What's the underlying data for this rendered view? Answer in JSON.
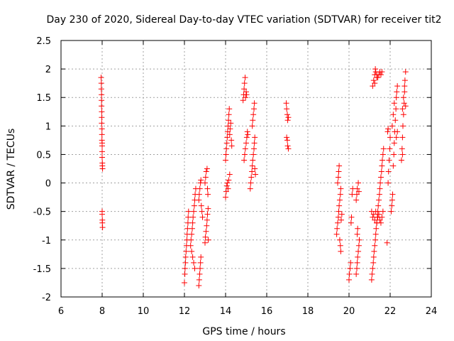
{
  "chart_data": {
    "type": "scatter",
    "title": "Day 230 of 2020, Sidereal Day-to-day VTEC variation (SDTVAR) for receiver tit2",
    "xlabel": "GPS time / hours",
    "ylabel": "SDTVAR / TECUs",
    "xlim": [
      6,
      24
    ],
    "ylim": [
      -2,
      2.5
    ],
    "xticks": [
      6,
      8,
      10,
      12,
      14,
      16,
      18,
      20,
      22,
      24
    ],
    "yticks": [
      -2,
      -1.5,
      -1,
      -0.5,
      0,
      0.5,
      1,
      1.5,
      2,
      2.5
    ],
    "xtick_labels": [
      "6",
      "8",
      "10",
      "12",
      "14",
      "16",
      "18",
      "20",
      "22",
      "24"
    ],
    "ytick_labels": [
      "-2",
      "-1.5",
      "-1",
      "-0.5",
      "0",
      "0.5",
      "1",
      "1.5",
      "2",
      "2.5"
    ],
    "grid": true,
    "marker": "+",
    "marker_color": "#ff0000",
    "series": [
      {
        "name": "tit2",
        "points": [
          [
            7.95,
            1.85
          ],
          [
            7.96,
            1.75
          ],
          [
            7.96,
            1.65
          ],
          [
            7.97,
            1.55
          ],
          [
            7.97,
            1.45
          ],
          [
            7.97,
            1.35
          ],
          [
            7.98,
            1.25
          ],
          [
            7.98,
            1.15
          ],
          [
            7.98,
            1.05
          ],
          [
            7.99,
            0.95
          ],
          [
            7.99,
            0.85
          ],
          [
            7.99,
            0.75
          ],
          [
            8.0,
            0.7
          ],
          [
            8.0,
            0.65
          ],
          [
            8.0,
            0.55
          ],
          [
            8.0,
            0.45
          ],
          [
            8.01,
            0.35
          ],
          [
            8.01,
            0.3
          ],
          [
            8.02,
            0.25
          ],
          [
            8.0,
            -0.5
          ],
          [
            8.0,
            -0.55
          ],
          [
            8.01,
            -0.65
          ],
          [
            8.01,
            -0.7
          ],
          [
            8.02,
            -0.78
          ],
          [
            12.0,
            -1.75
          ],
          [
            12.02,
            -1.6
          ],
          [
            12.03,
            -1.5
          ],
          [
            12.05,
            -1.4
          ],
          [
            12.06,
            -1.3
          ],
          [
            12.08,
            -1.2
          ],
          [
            12.1,
            -1.1
          ],
          [
            12.12,
            -1.0
          ],
          [
            12.13,
            -0.9
          ],
          [
            12.15,
            -0.8
          ],
          [
            12.17,
            -0.7
          ],
          [
            12.18,
            -0.6
          ],
          [
            12.2,
            -0.5
          ],
          [
            12.3,
            -1.1
          ],
          [
            12.32,
            -1.0
          ],
          [
            12.35,
            -0.9
          ],
          [
            12.38,
            -0.8
          ],
          [
            12.4,
            -0.7
          ],
          [
            12.42,
            -0.6
          ],
          [
            12.45,
            -0.5
          ],
          [
            12.48,
            -0.4
          ],
          [
            12.5,
            -0.3
          ],
          [
            12.52,
            -0.2
          ],
          [
            12.55,
            -0.1
          ],
          [
            12.35,
            -1.2
          ],
          [
            12.4,
            -1.3
          ],
          [
            12.45,
            -1.4
          ],
          [
            12.5,
            -1.5
          ],
          [
            12.7,
            -1.8
          ],
          [
            12.72,
            -1.7
          ],
          [
            12.74,
            -1.6
          ],
          [
            12.76,
            -1.5
          ],
          [
            12.78,
            -1.4
          ],
          [
            12.8,
            -1.3
          ],
          [
            12.7,
            -0.3
          ],
          [
            12.72,
            -0.2
          ],
          [
            12.75,
            -0.1
          ],
          [
            12.78,
            0.0
          ],
          [
            12.8,
            0.05
          ],
          [
            12.82,
            -0.4
          ],
          [
            12.85,
            -0.5
          ],
          [
            12.88,
            -0.6
          ],
          [
            13.0,
            -1.05
          ],
          [
            13.02,
            -0.95
          ],
          [
            13.05,
            -0.85
          ],
          [
            13.08,
            -0.75
          ],
          [
            13.1,
            -0.65
          ],
          [
            13.12,
            -0.55
          ],
          [
            13.15,
            -0.45
          ],
          [
            13.0,
            0.0
          ],
          [
            13.03,
            0.1
          ],
          [
            13.06,
            0.2
          ],
          [
            13.1,
            0.25
          ],
          [
            13.12,
            -0.1
          ],
          [
            13.14,
            -0.2
          ],
          [
            13.16,
            -1.0
          ],
          [
            14.0,
            -0.25
          ],
          [
            14.03,
            -0.15
          ],
          [
            14.06,
            -0.05
          ],
          [
            14.09,
            0.0
          ],
          [
            14.12,
            -0.1
          ],
          [
            14.15,
            0.05
          ],
          [
            14.2,
            0.15
          ],
          [
            14.0,
            0.4
          ],
          [
            14.02,
            0.5
          ],
          [
            14.04,
            0.6
          ],
          [
            14.06,
            0.7
          ],
          [
            14.08,
            0.8
          ],
          [
            14.1,
            0.9
          ],
          [
            14.12,
            1.0
          ],
          [
            14.14,
            1.1
          ],
          [
            14.16,
            1.2
          ],
          [
            14.18,
            1.3
          ],
          [
            14.2,
            0.85
          ],
          [
            14.22,
            0.95
          ],
          [
            14.25,
            1.05
          ],
          [
            14.28,
            0.75
          ],
          [
            14.3,
            0.65
          ],
          [
            14.85,
            1.45
          ],
          [
            14.88,
            1.55
          ],
          [
            14.9,
            1.65
          ],
          [
            14.92,
            1.75
          ],
          [
            14.95,
            1.85
          ],
          [
            14.97,
            1.5
          ],
          [
            15.0,
            1.6
          ],
          [
            15.02,
            1.55
          ],
          [
            14.9,
            0.4
          ],
          [
            14.93,
            0.5
          ],
          [
            14.96,
            0.6
          ],
          [
            15.0,
            0.7
          ],
          [
            15.03,
            0.8
          ],
          [
            15.06,
            0.9
          ],
          [
            15.08,
            0.85
          ],
          [
            15.2,
            -0.1
          ],
          [
            15.22,
            0.0
          ],
          [
            15.25,
            0.1
          ],
          [
            15.28,
            0.2
          ],
          [
            15.3,
            0.3
          ],
          [
            15.32,
            0.4
          ],
          [
            15.35,
            0.5
          ],
          [
            15.38,
            0.6
          ],
          [
            15.4,
            0.7
          ],
          [
            15.42,
            0.8
          ],
          [
            15.3,
            1.0
          ],
          [
            15.32,
            1.1
          ],
          [
            15.35,
            1.2
          ],
          [
            15.38,
            1.3
          ],
          [
            15.4,
            1.4
          ],
          [
            15.42,
            0.25
          ],
          [
            15.45,
            0.15
          ],
          [
            16.95,
            1.4
          ],
          [
            16.97,
            1.3
          ],
          [
            17.0,
            1.2
          ],
          [
            17.02,
            1.1
          ],
          [
            17.05,
            1.15
          ],
          [
            16.97,
            0.8
          ],
          [
            17.0,
            0.75
          ],
          [
            17.02,
            0.65
          ],
          [
            17.05,
            0.6
          ],
          [
            19.4,
            -0.9
          ],
          [
            19.42,
            -0.8
          ],
          [
            19.45,
            -0.7
          ],
          [
            19.48,
            -0.6
          ],
          [
            19.5,
            -0.5
          ],
          [
            19.52,
            -0.4
          ],
          [
            19.55,
            -0.3
          ],
          [
            19.58,
            -0.2
          ],
          [
            19.6,
            -0.1
          ],
          [
            19.45,
            0.0
          ],
          [
            19.48,
            0.1
          ],
          [
            19.5,
            0.2
          ],
          [
            19.52,
            0.3
          ],
          [
            19.55,
            -1.0
          ],
          [
            19.58,
            -1.1
          ],
          [
            19.6,
            -1.2
          ],
          [
            19.62,
            -0.65
          ],
          [
            19.65,
            -0.55
          ],
          [
            20.0,
            -1.7
          ],
          [
            20.02,
            -1.6
          ],
          [
            20.05,
            -1.5
          ],
          [
            20.08,
            -1.4
          ],
          [
            20.1,
            -0.7
          ],
          [
            20.12,
            -0.6
          ],
          [
            20.15,
            -0.2
          ],
          [
            20.18,
            -0.1
          ],
          [
            20.35,
            -1.6
          ],
          [
            20.38,
            -1.5
          ],
          [
            20.4,
            -1.4
          ],
          [
            20.42,
            -1.3
          ],
          [
            20.45,
            -1.2
          ],
          [
            20.48,
            -1.1
          ],
          [
            20.5,
            -1.0
          ],
          [
            20.35,
            -0.3
          ],
          [
            20.38,
            -0.2
          ],
          [
            20.4,
            -0.1
          ],
          [
            20.45,
            0.0
          ],
          [
            20.48,
            -0.15
          ],
          [
            20.4,
            -0.9
          ],
          [
            20.42,
            -0.8
          ],
          [
            21.1,
            -1.7
          ],
          [
            21.12,
            -1.6
          ],
          [
            21.15,
            -1.5
          ],
          [
            21.18,
            -1.4
          ],
          [
            21.2,
            -1.3
          ],
          [
            21.22,
            -1.2
          ],
          [
            21.25,
            -1.1
          ],
          [
            21.28,
            -1.0
          ],
          [
            21.3,
            -0.9
          ],
          [
            21.32,
            -0.8
          ],
          [
            21.35,
            -0.7
          ],
          [
            21.38,
            -0.6
          ],
          [
            21.4,
            -0.5
          ],
          [
            21.42,
            -0.4
          ],
          [
            21.45,
            -0.3
          ],
          [
            21.48,
            -0.2
          ],
          [
            21.5,
            -0.1
          ],
          [
            21.52,
            0.0
          ],
          [
            21.55,
            0.1
          ],
          [
            21.58,
            0.2
          ],
          [
            21.6,
            0.3
          ],
          [
            21.62,
            0.4
          ],
          [
            21.65,
            0.5
          ],
          [
            21.68,
            0.6
          ],
          [
            21.1,
            -0.5
          ],
          [
            21.15,
            -0.6
          ],
          [
            21.2,
            -0.55
          ],
          [
            21.25,
            -0.65
          ],
          [
            21.3,
            -0.5
          ],
          [
            21.35,
            -0.7
          ],
          [
            21.4,
            -0.6
          ],
          [
            21.45,
            -0.55
          ],
          [
            21.5,
            -0.65
          ],
          [
            21.55,
            -0.7
          ],
          [
            21.6,
            -0.6
          ],
          [
            21.65,
            -0.5
          ],
          [
            21.15,
            1.7
          ],
          [
            21.2,
            1.8
          ],
          [
            21.25,
            1.9
          ],
          [
            21.28,
            2.0
          ],
          [
            21.3,
            1.95
          ],
          [
            21.35,
            1.9
          ],
          [
            21.4,
            1.85
          ],
          [
            21.45,
            1.9
          ],
          [
            21.5,
            1.95
          ],
          [
            21.55,
            1.9
          ],
          [
            21.6,
            1.95
          ],
          [
            21.25,
            1.75
          ],
          [
            21.35,
            1.85
          ],
          [
            21.85,
            -1.05
          ],
          [
            21.9,
            0.0
          ],
          [
            21.92,
            0.2
          ],
          [
            21.95,
            0.4
          ],
          [
            21.98,
            0.6
          ],
          [
            22.0,
            0.8
          ],
          [
            21.88,
            0.9
          ],
          [
            21.9,
            0.95
          ],
          [
            22.05,
            -0.5
          ],
          [
            22.08,
            -0.4
          ],
          [
            22.1,
            -0.3
          ],
          [
            22.12,
            -0.2
          ],
          [
            22.15,
            0.3
          ],
          [
            22.18,
            0.5
          ],
          [
            22.2,
            0.7
          ],
          [
            22.22,
            0.9
          ],
          [
            22.25,
            1.1
          ],
          [
            22.28,
            1.3
          ],
          [
            22.3,
            1.5
          ],
          [
            22.32,
            1.6
          ],
          [
            22.35,
            1.7
          ],
          [
            22.1,
            1.0
          ],
          [
            22.15,
            1.2
          ],
          [
            22.2,
            1.4
          ],
          [
            22.3,
            0.8
          ],
          [
            22.35,
            0.9
          ],
          [
            22.55,
            0.4
          ],
          [
            22.58,
            0.6
          ],
          [
            22.6,
            0.8
          ],
          [
            22.62,
            1.0
          ],
          [
            22.65,
            1.2
          ],
          [
            22.68,
            1.4
          ],
          [
            22.7,
            1.6
          ],
          [
            22.72,
            1.8
          ],
          [
            22.75,
            1.95
          ],
          [
            22.6,
            1.3
          ],
          [
            22.65,
            1.5
          ],
          [
            22.7,
            1.7
          ],
          [
            22.75,
            1.35
          ],
          [
            22.6,
            0.5
          ]
        ]
      }
    ]
  }
}
